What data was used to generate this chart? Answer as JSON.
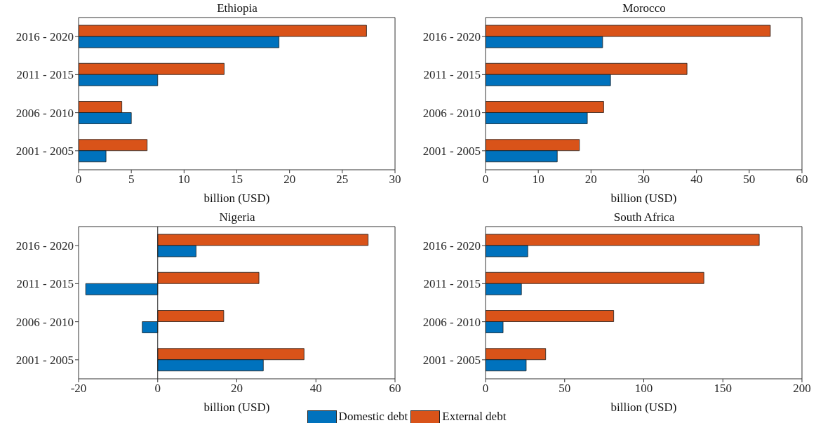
{
  "chart_data": [
    {
      "type": "bar",
      "orientation": "horizontal",
      "title": "Ethiopia",
      "xlabel": "billion (USD)",
      "categories": [
        "2016 - 2020",
        "2011 - 2015",
        "2006 - 2010",
        "2001 - 2005"
      ],
      "xlim": [
        0,
        30
      ],
      "xticks": [
        0,
        5,
        10,
        15,
        20,
        25,
        30
      ],
      "legend": "bottom",
      "series": [
        {
          "name": "Domestic debt",
          "color": "#0072bd",
          "values": [
            19.0,
            7.5,
            5.0,
            2.6
          ]
        },
        {
          "name": "External debt",
          "color": "#d95319",
          "values": [
            27.3,
            13.8,
            4.1,
            6.5
          ]
        }
      ]
    },
    {
      "type": "bar",
      "orientation": "horizontal",
      "title": "Morocco",
      "xlabel": "billion (USD)",
      "categories": [
        "2016 - 2020",
        "2011 - 2015",
        "2006 - 2010",
        "2001 - 2005"
      ],
      "xlim": [
        0,
        60
      ],
      "xticks": [
        0,
        10,
        20,
        30,
        40,
        50,
        60
      ],
      "series": [
        {
          "color": "#0072bd",
          "values": [
            22.2,
            23.7,
            19.3,
            13.6
          ]
        },
        {
          "color": "#d95319",
          "values": [
            54.0,
            38.2,
            22.4,
            17.8
          ]
        }
      ]
    },
    {
      "type": "bar",
      "orientation": "horizontal",
      "title": "Nigeria",
      "xlabel": "billion (USD)",
      "categories": [
        "2016 - 2020",
        "2011 - 2015",
        "2006 - 2010",
        "2001 - 2005"
      ],
      "xlim": [
        -20,
        60
      ],
      "xticks": [
        -20,
        0,
        20,
        40,
        60
      ],
      "series": [
        {
          "color": "#0072bd",
          "values": [
            9.7,
            -18.2,
            -3.9,
            26.7
          ]
        },
        {
          "color": "#d95319",
          "values": [
            53.2,
            25.6,
            16.7,
            37.0
          ]
        }
      ]
    },
    {
      "type": "bar",
      "orientation": "horizontal",
      "title": "South Africa",
      "xlabel": "billion (USD)",
      "categories": [
        "2016 - 2020",
        "2011 - 2015",
        "2006 - 2010",
        "2001 - 2005"
      ],
      "xlim": [
        0,
        200
      ],
      "xticks": [
        0,
        50,
        100,
        150,
        200
      ],
      "series": [
        {
          "color": "#0072bd",
          "values": [
            26.7,
            22.7,
            11.1,
            25.7
          ]
        },
        {
          "color": "#d95319",
          "values": [
            173,
            138,
            81,
            38
          ]
        }
      ]
    }
  ]
}
